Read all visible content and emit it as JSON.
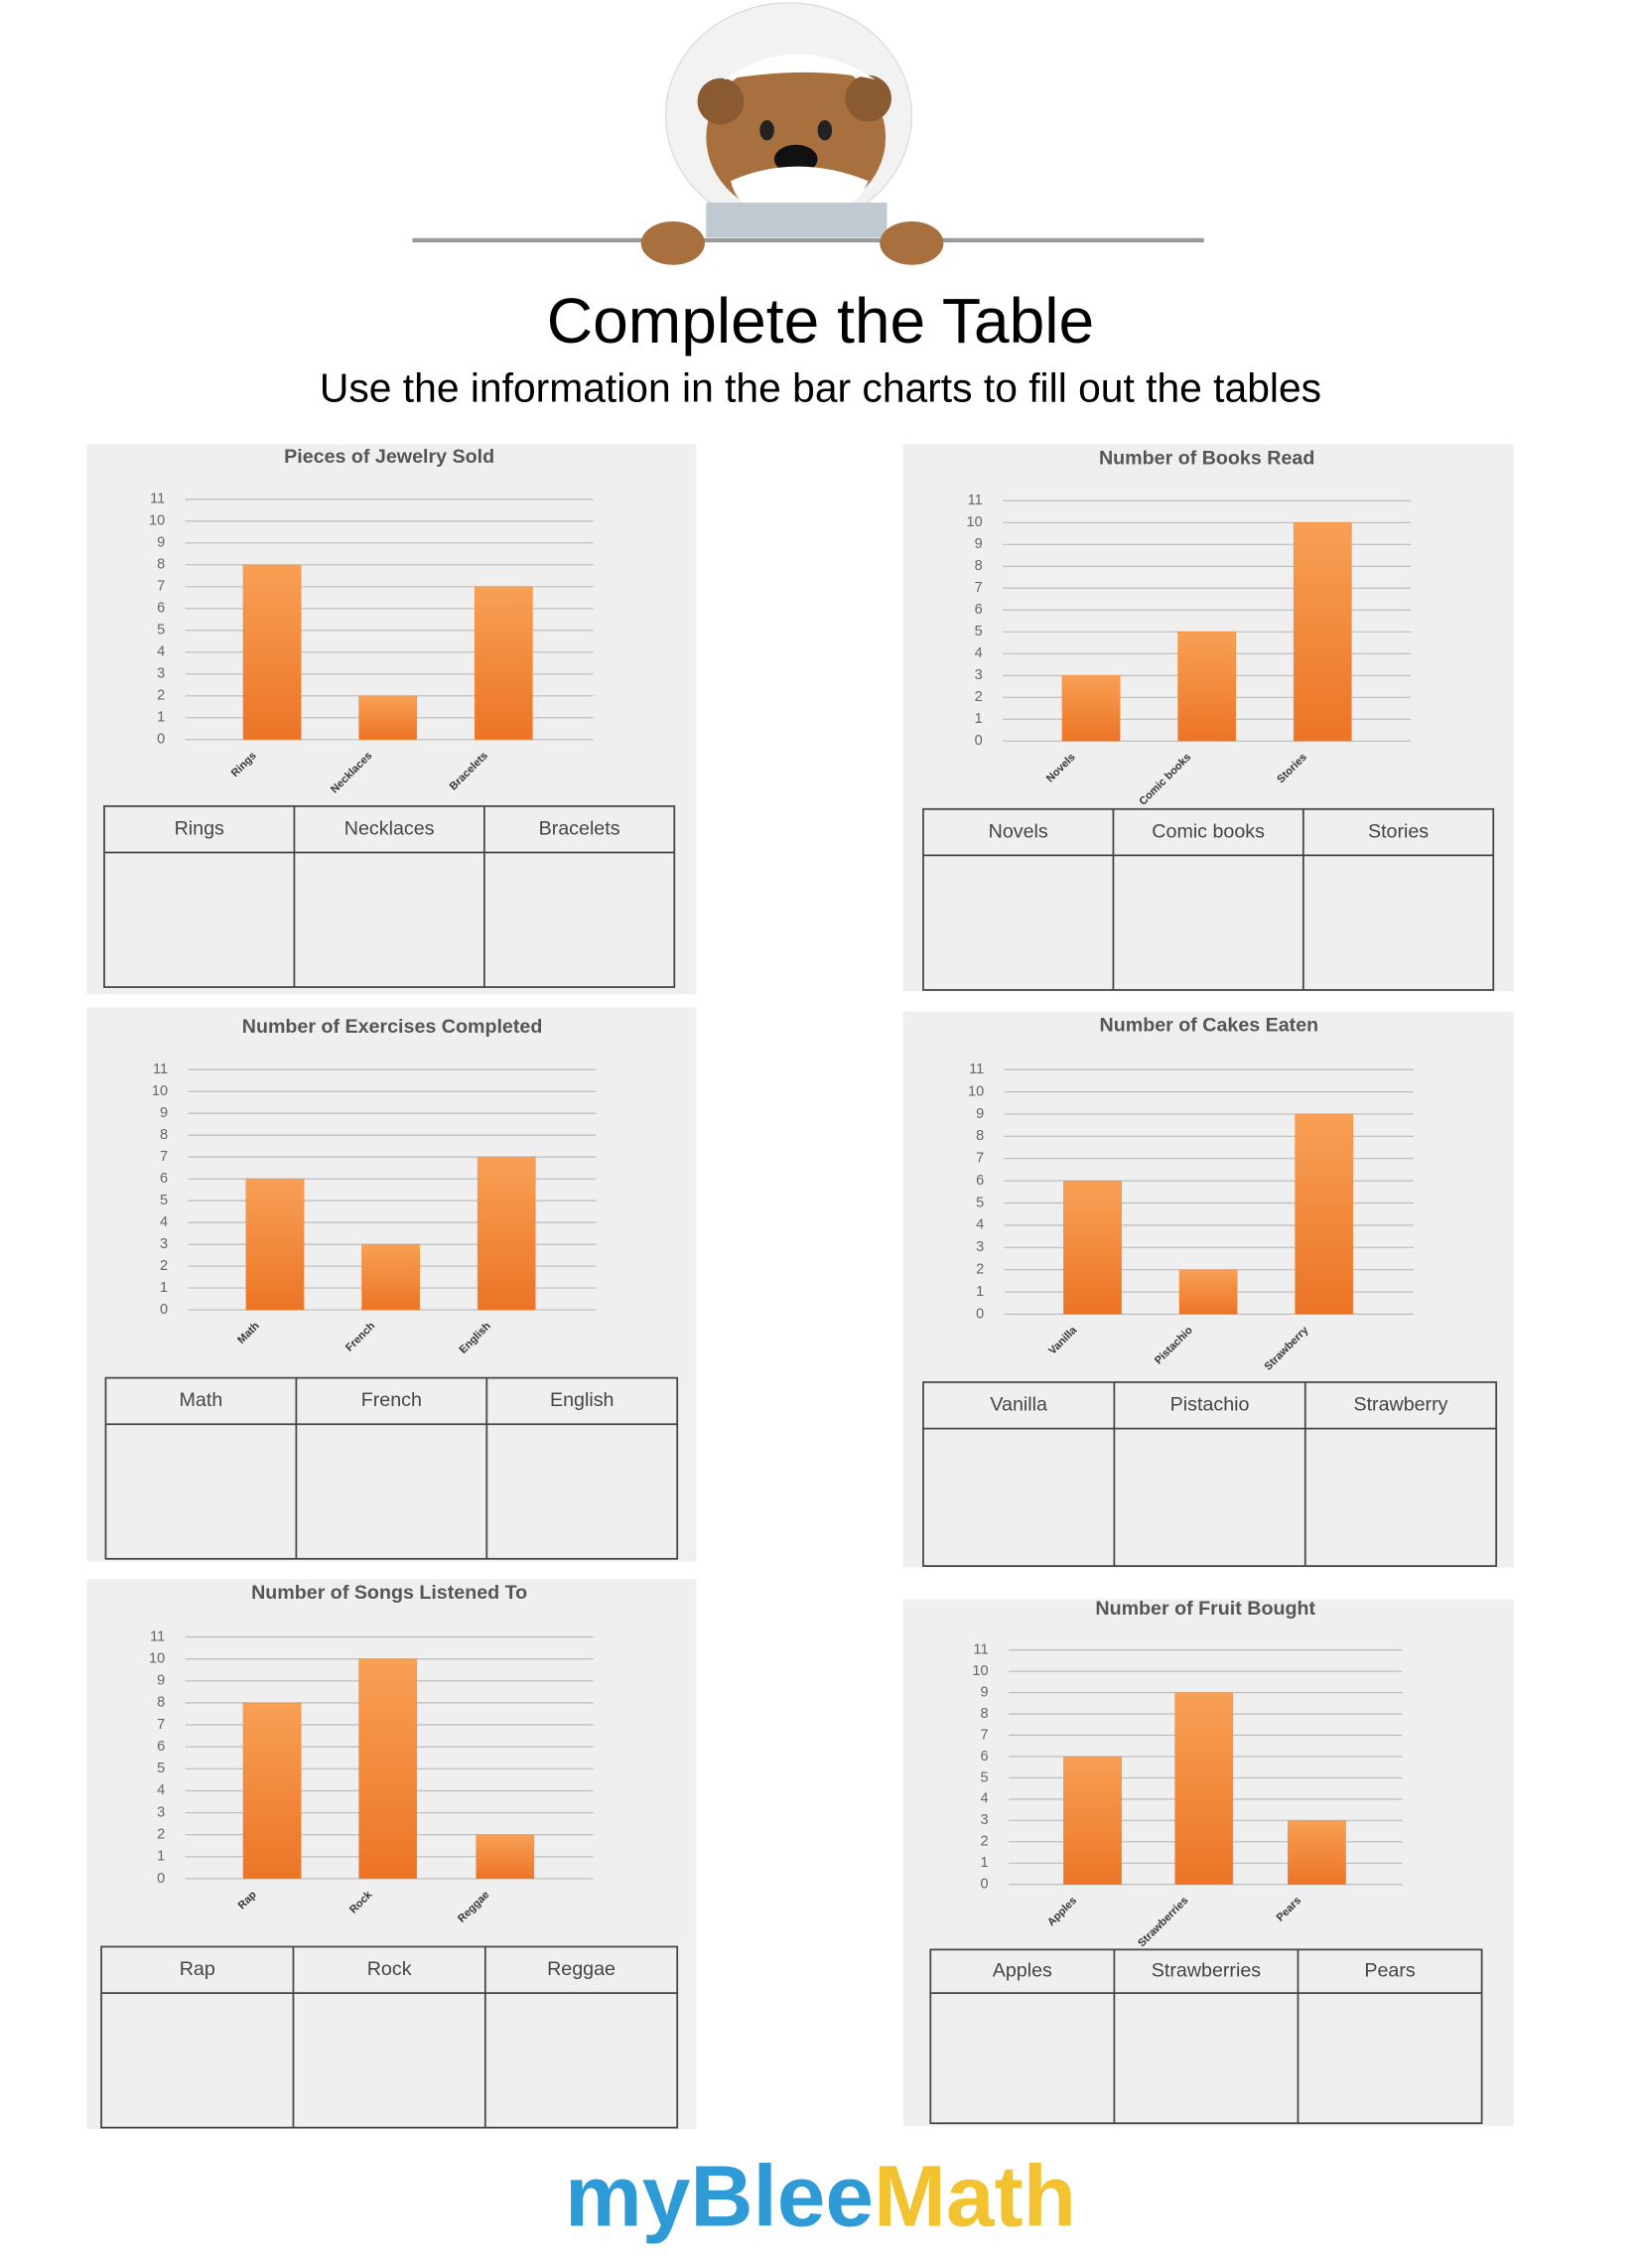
{
  "header": {
    "title": "Complete the Table",
    "subtitle": "Use the information in the bar charts to fill out the tables"
  },
  "chart_data": [
    {
      "type": "bar",
      "title": "Pieces of Jewelry Sold",
      "categories": [
        "Rings",
        "Necklaces",
        "Bracelets"
      ],
      "values": [
        8,
        2,
        7
      ],
      "color": "#f08a3a",
      "ylim": [
        0,
        11
      ],
      "yticks": [
        0,
        1,
        2,
        3,
        4,
        5,
        6,
        7,
        8,
        9,
        10,
        11
      ],
      "grid": true
    },
    {
      "type": "bar",
      "title": "Number of Books Read",
      "categories": [
        "Novels",
        "Comic books",
        "Stories"
      ],
      "values": [
        3,
        5,
        10
      ],
      "color": "#f08a3a",
      "ylim": [
        0,
        11
      ],
      "yticks": [
        0,
        1,
        2,
        3,
        4,
        5,
        6,
        7,
        8,
        9,
        10,
        11
      ],
      "grid": true
    },
    {
      "type": "bar",
      "title": "Number of Exercises Completed",
      "categories": [
        "Math",
        "French",
        "English"
      ],
      "values": [
        6,
        3,
        7
      ],
      "color": "#f08a3a",
      "ylim": [
        0,
        11
      ],
      "yticks": [
        0,
        1,
        2,
        3,
        4,
        5,
        6,
        7,
        8,
        9,
        10,
        11
      ],
      "grid": true
    },
    {
      "type": "bar",
      "title": "Number of Cakes Eaten",
      "categories": [
        "Vanilla",
        "Pistachio",
        "Strawberry"
      ],
      "values": [
        6,
        2,
        9
      ],
      "color": "#f08a3a",
      "ylim": [
        0,
        11
      ],
      "yticks": [
        0,
        1,
        2,
        3,
        4,
        5,
        6,
        7,
        8,
        9,
        10,
        11
      ],
      "grid": true
    },
    {
      "type": "bar",
      "title": "Number of Songs Listened To",
      "categories": [
        "Rap",
        "Rock",
        "Reggae"
      ],
      "values": [
        8,
        10,
        2
      ],
      "color": "#f08a3a",
      "ylim": [
        0,
        11
      ],
      "yticks": [
        0,
        1,
        2,
        3,
        4,
        5,
        6,
        7,
        8,
        9,
        10,
        11
      ],
      "grid": true
    },
    {
      "type": "bar",
      "title": "Number of Fruit Bought",
      "categories": [
        "Apples",
        "Strawberries",
        "Pears"
      ],
      "values": [
        6,
        9,
        3
      ],
      "color": "#f08a3a",
      "ylim": [
        0,
        11
      ],
      "yticks": [
        0,
        1,
        2,
        3,
        4,
        5,
        6,
        7,
        8,
        9,
        10,
        11
      ],
      "grid": true
    }
  ],
  "logo": {
    "brand": "myBlee",
    "subject": "Math"
  }
}
